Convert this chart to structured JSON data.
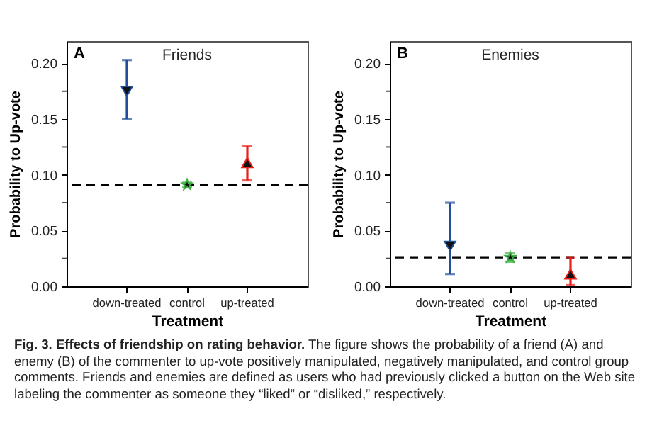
{
  "chart_data": [
    {
      "type": "scatter",
      "title": "Friends",
      "xlabel": "Treatment",
      "ylabel": "Probability to Up-vote",
      "categories": [
        "down-treated",
        "control",
        "up-treated"
      ],
      "series": [
        {
          "color": "#1f4e9a",
          "marker": "triangle-down",
          "values": [
            0.175,
            null,
            null
          ],
          "errors": [
            [
              0.15,
              0.203
            ],
            null,
            null
          ]
        },
        {
          "color": "#3cb043",
          "marker": "star",
          "values": [
            null,
            0.091,
            null
          ],
          "errors": [
            null,
            [
              0.089,
              0.093
            ],
            null
          ]
        },
        {
          "color": "#e8201c",
          "marker": "triangle",
          "values": [
            null,
            null,
            0.111
          ],
          "errors": [
            null,
            null,
            [
              0.095,
              0.126
            ]
          ]
        }
      ],
      "ylim": [
        0,
        0.22
      ],
      "yticks": [
        {
          "value": 0,
          "label": "0.00"
        },
        {
          "value": 0.025,
          "label": null
        },
        {
          "value": 0.05,
          "label": "0.05"
        },
        {
          "value": 0.075,
          "label": null
        },
        {
          "value": 0.1,
          "label": "0.10"
        },
        {
          "value": 0.125,
          "label": null
        },
        {
          "value": 0.15,
          "label": "0.15"
        },
        {
          "value": 0.175,
          "label": null
        },
        {
          "value": 0.2,
          "label": "0.20"
        }
      ],
      "ref_lines": [
        {
          "axis": "y",
          "value": 0.091,
          "color": "#000000",
          "line_style": "dashed"
        }
      ],
      "annotations": [
        "A"
      ],
      "grid": false
    },
    {
      "type": "scatter",
      "title": "Enemies",
      "xlabel": "Treatment",
      "ylabel": "Probability to Up-vote",
      "categories": [
        "down-treated",
        "control",
        "up-treated"
      ],
      "series": [
        {
          "color": "#1f4e9a",
          "marker": "triangle-down",
          "values": [
            0.036,
            null,
            null
          ],
          "errors": [
            [
              0.011,
              0.075
            ],
            null,
            null
          ]
        },
        {
          "color": "#3cb043",
          "marker": "star",
          "values": [
            null,
            0.026,
            null
          ],
          "errors": [
            null,
            [
              0.022,
              0.03
            ],
            null
          ]
        },
        {
          "color": "#e8201c",
          "marker": "triangle",
          "values": [
            null,
            null,
            0.011
          ],
          "errors": [
            null,
            null,
            [
              0.001,
              0.026
            ]
          ]
        }
      ],
      "ylim": [
        0,
        0.22
      ],
      "yticks": [
        {
          "value": 0,
          "label": "0.00"
        },
        {
          "value": 0.025,
          "label": null
        },
        {
          "value": 0.05,
          "label": "0.05"
        },
        {
          "value": 0.075,
          "label": null
        },
        {
          "value": 0.1,
          "label": "0.10"
        },
        {
          "value": 0.125,
          "label": null
        },
        {
          "value": 0.15,
          "label": "0.15"
        },
        {
          "value": 0.175,
          "label": null
        },
        {
          "value": 0.2,
          "label": "0.20"
        }
      ],
      "ref_lines": [
        {
          "axis": "y",
          "value": 0.026,
          "color": "#000000",
          "line_style": "dashed"
        }
      ],
      "annotations": [
        "B",
        "Fig. 3. Effects of friendship on rating behavior. The figure shows the probability of a friend (A) and enemy (B) of the commenter to up-vote positively manipulated, negatively manipulated, and control group comments. Friends and enemies are defined as users who had previously clicked a button on the Web site labeling the commenter as someone they “liked” or “disliked,” respectively."
      ],
      "grid": false
    }
  ]
}
